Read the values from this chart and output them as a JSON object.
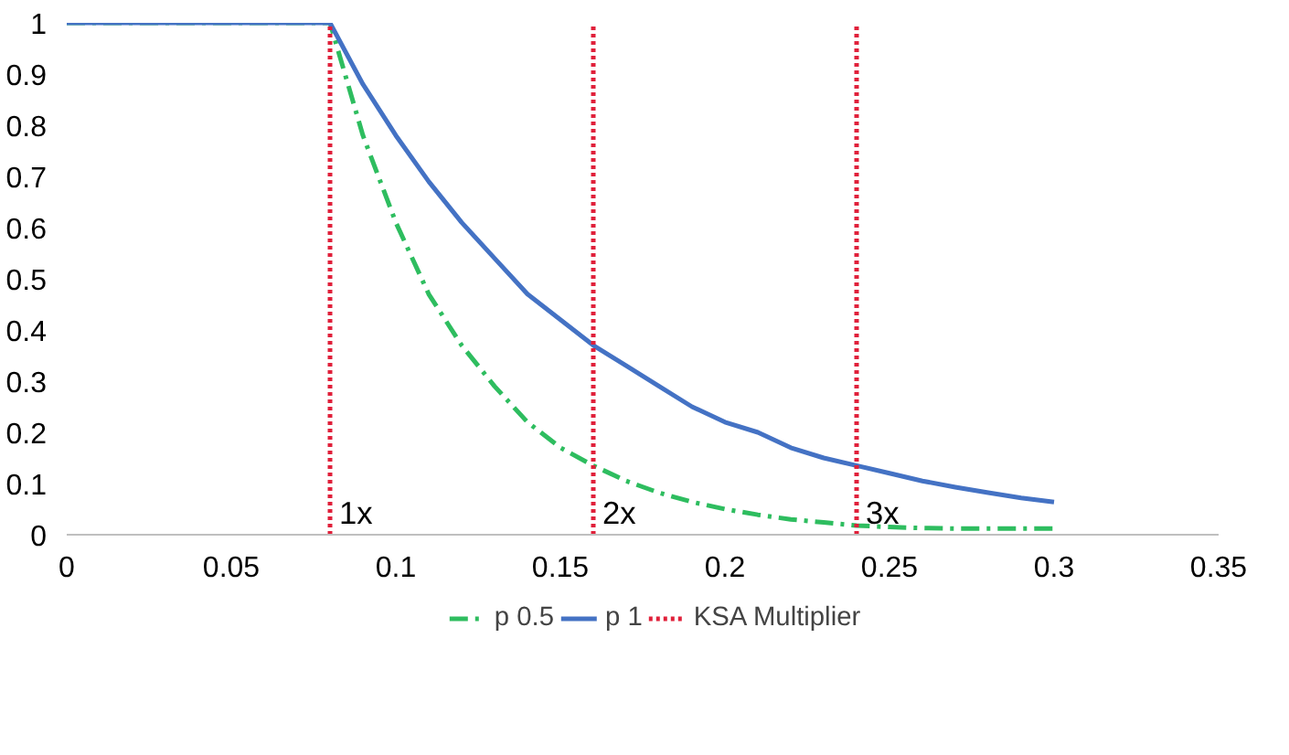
{
  "chart_data": {
    "type": "line",
    "xlim": [
      0,
      0.35
    ],
    "ylim": [
      0,
      1
    ],
    "xticks": [
      0,
      0.05,
      0.1,
      0.15,
      0.2,
      0.25,
      0.3,
      0.35
    ],
    "yticks": [
      0,
      0.1,
      0.2,
      0.3,
      0.4,
      0.5,
      0.6,
      0.7,
      0.8,
      0.9,
      1
    ],
    "grid": false,
    "legend": "bottom",
    "marker": "none",
    "series": [
      {
        "name": "p 0.5",
        "color": "#2ebd5f",
        "line_style": "dashed",
        "x": [
          0,
          0.08,
          0.09,
          0.1,
          0.11,
          0.12,
          0.13,
          0.14,
          0.15,
          0.16,
          0.17,
          0.18,
          0.19,
          0.2,
          0.21,
          0.22,
          0.23,
          0.24,
          0.25,
          0.26,
          0.27,
          0.28,
          0.29,
          0.3
        ],
        "values": [
          1,
          1,
          0.78,
          0.61,
          0.47,
          0.37,
          0.29,
          0.22,
          0.17,
          0.135,
          0.105,
          0.082,
          0.064,
          0.05,
          0.039,
          0.03,
          0.024,
          0.018,
          0.015,
          0.013,
          0.012,
          0.012,
          0.012,
          0.012
        ]
      },
      {
        "name": "p 1",
        "color": "#4472c4",
        "line_style": "solid",
        "x": [
          0,
          0.08,
          0.09,
          0.1,
          0.11,
          0.12,
          0.13,
          0.14,
          0.15,
          0.16,
          0.17,
          0.18,
          0.19,
          0.2,
          0.21,
          0.22,
          0.23,
          0.24,
          0.25,
          0.26,
          0.27,
          0.28,
          0.29,
          0.3
        ],
        "values": [
          1,
          1,
          0.88,
          0.78,
          0.69,
          0.61,
          0.54,
          0.47,
          0.42,
          0.37,
          0.33,
          0.29,
          0.25,
          0.22,
          0.2,
          0.17,
          0.15,
          0.135,
          0.12,
          0.105,
          0.093,
          0.082,
          0.072,
          0.064
        ]
      },
      {
        "name": "KSA Multiplier",
        "color": "#e0203a",
        "line_style": "dotted",
        "x": [
          0.08,
          0.08,
          null,
          0.16,
          0.16,
          null,
          0.24,
          0.24
        ],
        "values": [
          0,
          1,
          null,
          0,
          1,
          null,
          0,
          1
        ]
      }
    ],
    "annotations": [
      {
        "text": "1x",
        "x": 0.08,
        "y": 0
      },
      {
        "text": "2x",
        "x": 0.16,
        "y": 0
      },
      {
        "text": "3x",
        "x": 0.24,
        "y": 0
      }
    ]
  }
}
